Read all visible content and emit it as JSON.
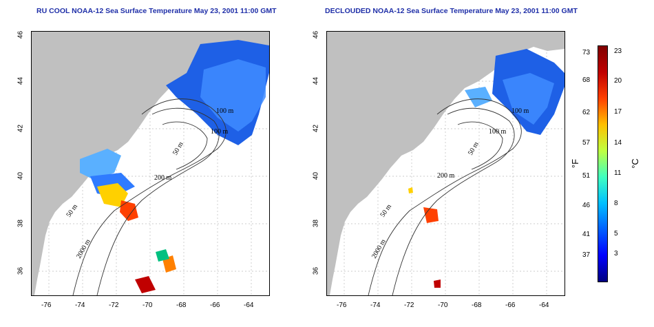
{
  "titles": {
    "left": "RU COOL NOAA-12 Sea Surface Temperature May 23, 2001 11:00 GMT",
    "right": "DECLOUDED NOAA-12 Sea Surface Temperature May 23, 2001 11:00 GMT"
  },
  "map": {
    "lon_ticks": [
      "-76",
      "-74",
      "-72",
      "-70",
      "-68",
      "-66",
      "-64"
    ],
    "lat_ticks": [
      "46",
      "44",
      "42",
      "40",
      "38",
      "36"
    ],
    "isobath_labels": [
      "50 m",
      "100 m",
      "200 m",
      "2000 m"
    ],
    "grid": true,
    "land_color": "#c0c0c0",
    "ocean_color": "#ffffff"
  },
  "colorbar": {
    "fahrenheit_ticks": [
      "73",
      "68",
      "62",
      "57",
      "51",
      "46",
      "41",
      "37"
    ],
    "celsius_ticks": [
      "23",
      "20",
      "17",
      "14",
      "11",
      "8",
      "5",
      "3"
    ],
    "fahrenheit_unit": "°F",
    "celsius_unit": "°C",
    "colors": [
      "#000080",
      "#0000ff",
      "#0060ff",
      "#00c0ff",
      "#40ffc0",
      "#c0ff40",
      "#ffc000",
      "#ff4000",
      "#c00000",
      "#800000"
    ]
  }
}
